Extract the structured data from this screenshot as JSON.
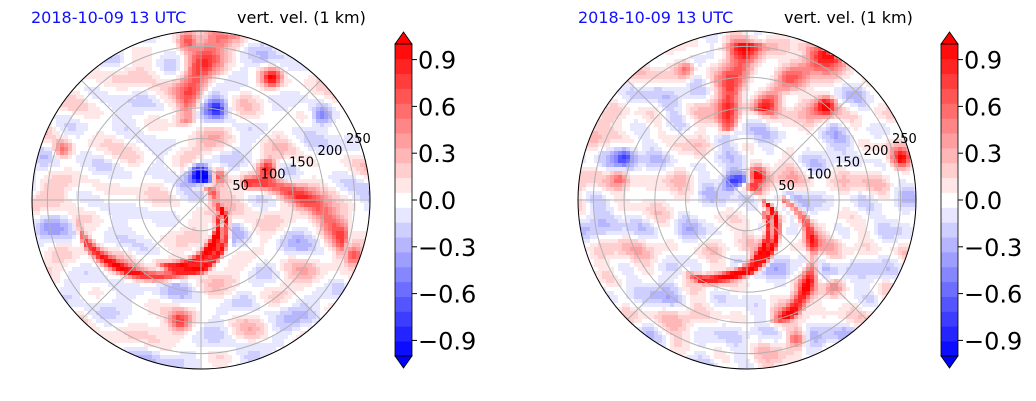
{
  "colors": {
    "positive": "#ff0000",
    "negative": "#0000ff",
    "neutral": "#ffffff",
    "grid": "#b0b0b0",
    "date_text": "#1010ff"
  },
  "chart_data": [
    {
      "type": "heatmap",
      "projection": "polar",
      "date_label": "2018-10-09 13 UTC",
      "variable_label": "vert. vel. (1 km)",
      "radial_ticks": [
        50,
        100,
        150,
        200,
        250
      ],
      "rmax": 275,
      "grid": true,
      "colorbar": {
        "ticks": [
          "0.9",
          "0.6",
          "0.3",
          "0.0",
          "−0.3",
          "−0.6",
          "−0.9"
        ],
        "tick_values": [
          0.9,
          0.6,
          0.3,
          0.0,
          -0.3,
          -0.6,
          -0.9
        ],
        "vmin": -1.0,
        "vmax": 1.0,
        "levels": 21,
        "extend": "both",
        "cmap": "bwr"
      },
      "eyewall_ring": {
        "radius_km": 22,
        "center_angle_deg": 60,
        "width_deg": 120,
        "strength": 1.0
      },
      "spiral_bands": [
        {
          "value": 1.0,
          "r0": 35,
          "r1": 115,
          "a0": -25,
          "a1": -90
        },
        {
          "value": 0.9,
          "r0": 40,
          "r1": 120,
          "a0": -50,
          "a1": -115
        },
        {
          "value": 0.8,
          "r0": 60,
          "r1": 200,
          "a0": -60,
          "a1": -160
        },
        {
          "value": 0.7,
          "r0": 80,
          "r1": 240,
          "a0": 20,
          "a1": -15
        },
        {
          "value": 0.6,
          "r0": 130,
          "r1": 270,
          "a0": 100,
          "a1": 85
        }
      ],
      "extrema": [
        {
          "value": -1.0,
          "r": 35,
          "angle": 75
        },
        {
          "value": -0.9,
          "r": 45,
          "angle": 95
        },
        {
          "value": 1.0,
          "r": 45,
          "angle": 55
        },
        {
          "value": 1.0,
          "r": 120,
          "angle": 25
        },
        {
          "value": 0.9,
          "r": 230,
          "angle": 60
        },
        {
          "value": 0.8,
          "r": 260,
          "angle": 95
        },
        {
          "value": 0.7,
          "r": 265,
          "angle": -20
        },
        {
          "value": 0.6,
          "r": 200,
          "angle": -100
        },
        {
          "value": 0.7,
          "r": 240,
          "angle": 160
        },
        {
          "value": -0.6,
          "r": 150,
          "angle": 80
        },
        {
          "value": -0.5,
          "r": 240,
          "angle": 35
        }
      ],
      "noise_seed": 11
    },
    {
      "type": "heatmap",
      "projection": "polar",
      "date_label": "2018-10-09 13 UTC",
      "variable_label": "vert. vel. (1 km)",
      "radial_ticks": [
        50,
        100,
        150,
        200,
        250
      ],
      "rmax": 275,
      "grid": true,
      "colorbar": {
        "ticks": [
          "0.9",
          "0.6",
          "0.3",
          "0.0",
          "−0.3",
          "−0.6",
          "−0.9"
        ],
        "tick_values": [
          0.9,
          0.6,
          0.3,
          0.0,
          -0.3,
          -0.6,
          -0.9
        ],
        "vmin": -1.0,
        "vmax": 1.0,
        "levels": 21,
        "extend": "both",
        "cmap": "bwr"
      },
      "eyewall_ring": {
        "radius_km": 22,
        "center_angle_deg": 80,
        "width_deg": 100,
        "strength": 1.0
      },
      "spiral_bands": [
        {
          "value": 1.0,
          "r0": 30,
          "r1": 120,
          "a0": -10,
          "a1": -90
        },
        {
          "value": 0.9,
          "r0": 40,
          "r1": 150,
          "a0": -40,
          "a1": -120
        },
        {
          "value": 0.8,
          "r0": 60,
          "r1": 200,
          "a0": 0,
          "a1": -70
        },
        {
          "value": 0.7,
          "r0": 150,
          "r1": 270,
          "a0": 80,
          "a1": 60
        },
        {
          "value": 0.7,
          "r0": 120,
          "r1": 250,
          "a0": 105,
          "a1": 90
        }
      ],
      "extrema": [
        {
          "value": -1.0,
          "r": 30,
          "angle": 95
        },
        {
          "value": -0.8,
          "r": 40,
          "angle": 130
        },
        {
          "value": 1.0,
          "r": 42,
          "angle": 70
        },
        {
          "value": 1.0,
          "r": 200,
          "angle": 50
        },
        {
          "value": 0.9,
          "r": 260,
          "angle": 15
        },
        {
          "value": 0.8,
          "r": 240,
          "angle": -70
        },
        {
          "value": 0.7,
          "r": 235,
          "angle": 115
        },
        {
          "value": 0.6,
          "r": 200,
          "angle": -45
        },
        {
          "value": -0.6,
          "r": 140,
          "angle": -40
        },
        {
          "value": -0.5,
          "r": 210,
          "angle": 160
        },
        {
          "value": 0.6,
          "r": 210,
          "angle": 170
        }
      ],
      "noise_seed": 29
    }
  ]
}
